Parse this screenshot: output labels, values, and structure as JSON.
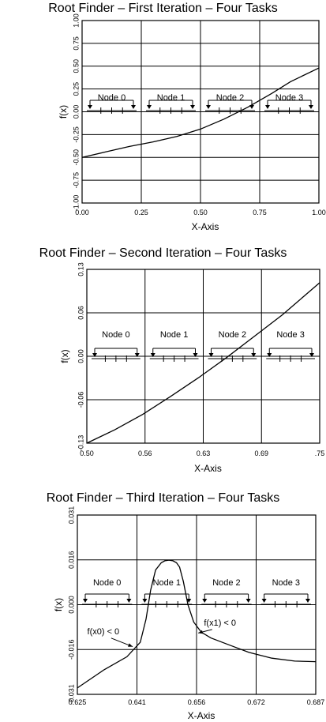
{
  "chart_data": [
    {
      "type": "line",
      "title": "Root Finder – First Iteration – Four Tasks",
      "xlabel": "X-Axis",
      "ylabel": "f(x)",
      "xlim": [
        0.0,
        1.0
      ],
      "ylim": [
        -1.0,
        1.0
      ],
      "x_ticks": [
        "0.00",
        "0.25",
        "0.50",
        "0.75",
        "1.00"
      ],
      "y_ticks": [
        "-1.00",
        "-0.75",
        "-0.50",
        "-0.25",
        "0.00",
        "0.25",
        "0.50",
        "0.75",
        "1.00"
      ],
      "grid": true,
      "nodes": [
        {
          "label": "Node 0",
          "x_start": 0.0,
          "x_end": 0.25
        },
        {
          "label": "Node 1",
          "x_start": 0.25,
          "x_end": 0.5
        },
        {
          "label": "Node 2",
          "x_start": 0.5,
          "x_end": 0.75
        },
        {
          "label": "Node 3",
          "x_start": 0.75,
          "x_end": 1.0
        }
      ],
      "series": [
        {
          "x": [
            0.0,
            0.1,
            0.2,
            0.3,
            0.4,
            0.5,
            0.6,
            0.7,
            0.8,
            0.88,
            1.0
          ],
          "y": [
            -0.5,
            -0.44,
            -0.38,
            -0.33,
            -0.27,
            -0.19,
            -0.08,
            0.05,
            0.2,
            0.33,
            0.48
          ]
        }
      ],
      "annotations": []
    },
    {
      "type": "line",
      "title": "Root Finder – Second Iteration – Four Tasks",
      "xlabel": "X-Axis",
      "ylabel": "f(x)",
      "xlim": [
        0.5,
        0.75
      ],
      "ylim": [
        -0.13,
        0.13
      ],
      "x_ticks": [
        "0.50",
        "0.56",
        "0.63",
        "0.69",
        ".75"
      ],
      "y_ticks": [
        "-0.13",
        "-0.06",
        "0.00",
        "0.06",
        "0.13"
      ],
      "grid": true,
      "nodes": [
        {
          "label": "Node 0",
          "x_start": 0.5,
          "x_end": 0.5625
        },
        {
          "label": "Node 1",
          "x_start": 0.5625,
          "x_end": 0.625
        },
        {
          "label": "Node 2",
          "x_start": 0.625,
          "x_end": 0.6875
        },
        {
          "label": "Node 3",
          "x_start": 0.6875,
          "x_end": 0.75
        }
      ],
      "series": [
        {
          "x": [
            0.5,
            0.53,
            0.56,
            0.59,
            0.62,
            0.65,
            0.68,
            0.71,
            0.75
          ],
          "y": [
            -0.13,
            -0.11,
            -0.087,
            -0.06,
            -0.032,
            -0.002,
            0.03,
            0.062,
            0.11
          ]
        }
      ],
      "annotations": []
    },
    {
      "type": "line",
      "title": "Root Finder – Third Iteration – Four Tasks",
      "xlabel": "X-Axis",
      "ylabel": "f(x)",
      "xlim": [
        0.625,
        0.6875
      ],
      "ylim": [
        -0.031,
        0.031
      ],
      "x_ticks": [
        "0.625",
        "0.641",
        "0.656",
        "0.672",
        "0.687"
      ],
      "y_ticks": [
        "-0.031",
        "-0.016",
        "0.000",
        "0.016",
        "0.031"
      ],
      "grid": true,
      "nodes": [
        {
          "label": "Node 0",
          "x_start": 0.625,
          "x_end": 0.6406
        },
        {
          "label": "Node 1",
          "x_start": 0.6406,
          "x_end": 0.6563
        },
        {
          "label": "Node 2",
          "x_start": 0.6563,
          "x_end": 0.6719
        },
        {
          "label": "Node 3",
          "x_start": 0.6719,
          "x_end": 0.6875
        }
      ],
      "series": [
        {
          "x": [
            0.625,
            0.632,
            0.638,
            0.6415,
            0.643,
            0.6442,
            0.6455,
            0.647,
            0.648,
            0.649,
            0.65,
            0.651,
            0.6518,
            0.6528,
            0.654,
            0.6555,
            0.6575,
            0.66,
            0.665,
            0.67,
            0.676,
            0.682,
            0.6875
          ],
          "y": [
            -0.0288,
            -0.0225,
            -0.018,
            -0.013,
            -0.005,
            0.005,
            0.012,
            0.0145,
            0.0152,
            0.0154,
            0.0152,
            0.0145,
            0.013,
            0.008,
            0.0,
            -0.006,
            -0.0095,
            -0.0115,
            -0.014,
            -0.0165,
            -0.0185,
            -0.0195,
            -0.0197
          ]
        }
      ],
      "annotations": [
        {
          "text": "f(x0) < 0",
          "x": 0.6318,
          "y": -0.0102,
          "point_x": 0.6395,
          "point_y": -0.0145
        },
        {
          "text": "f(x1) < 0",
          "x": 0.6624,
          "y": -0.0072,
          "point_x": 0.6567,
          "point_y": -0.0098
        }
      ]
    }
  ]
}
